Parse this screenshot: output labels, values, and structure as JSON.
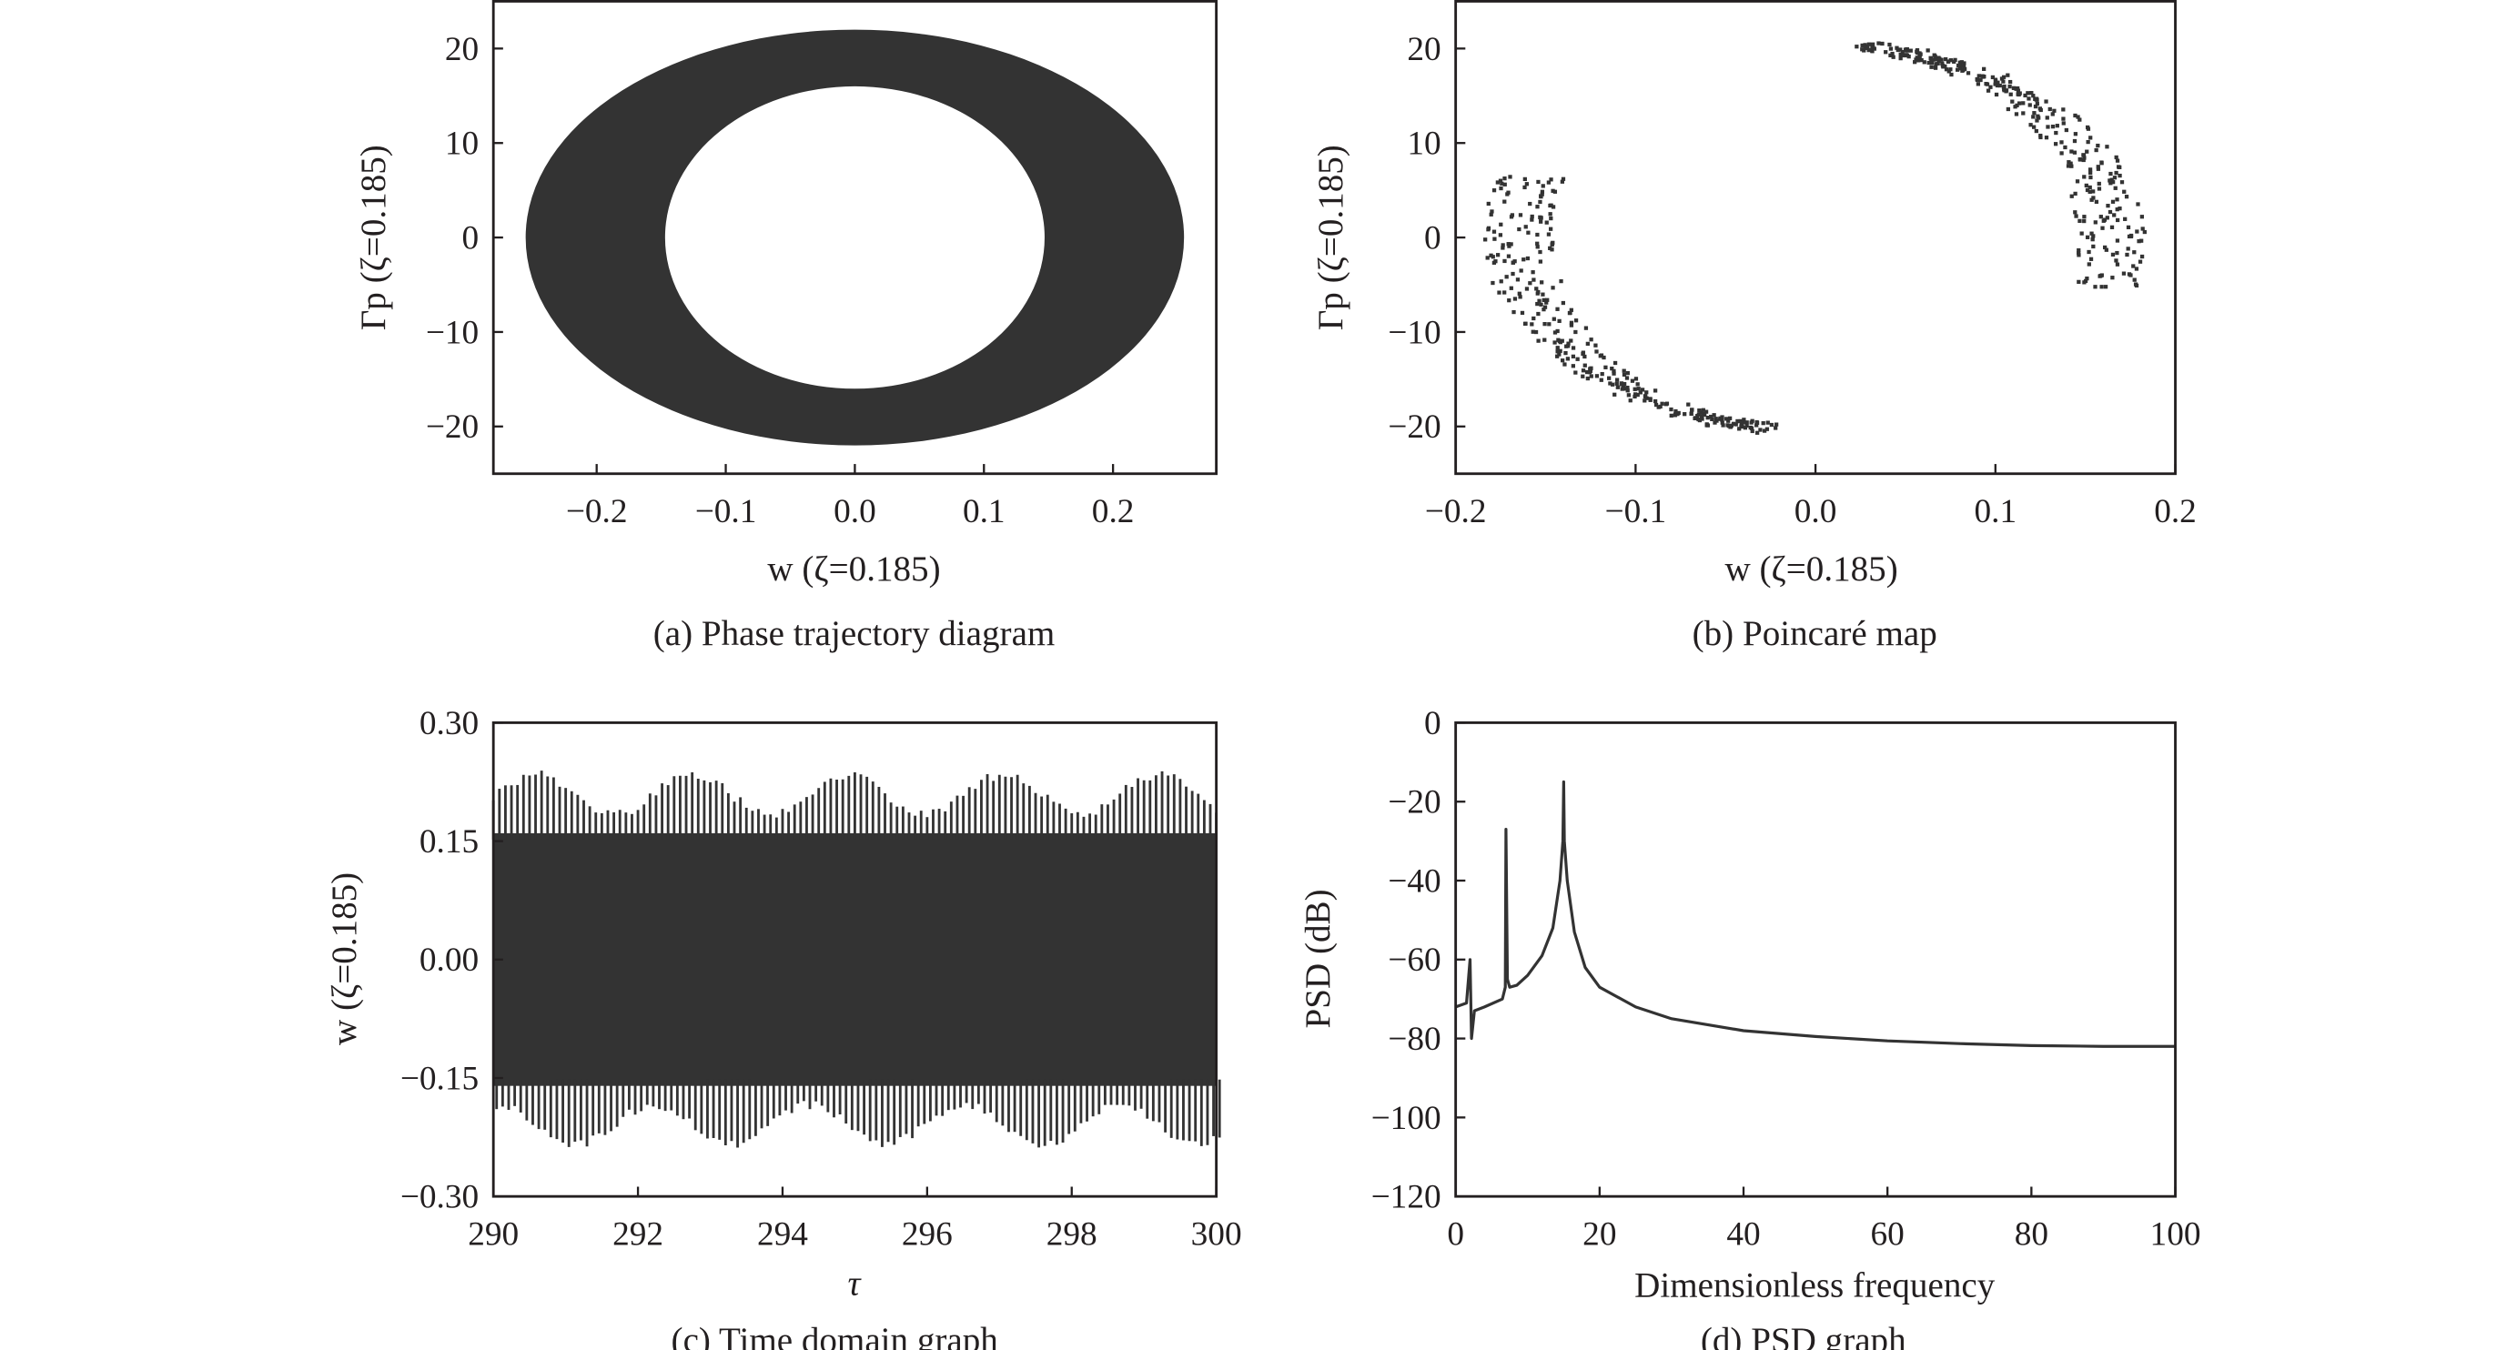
{
  "chart_data": [
    {
      "id": "a",
      "type": "area",
      "caption": "(a) Phase trajectory diagram",
      "xlabel": "w (ζ=0.185)",
      "ylabel": "Γp (ζ=0.185)",
      "xlim": [
        -0.28,
        0.28
      ],
      "ylim": [
        -25,
        25
      ],
      "xticks": [
        "−0.2",
        "−0.1",
        "0.0",
        "0.1",
        "0.2"
      ],
      "xtick_values": [
        -0.2,
        -0.1,
        0.0,
        0.1,
        0.2
      ],
      "yticks": [
        "20",
        "10",
        "0",
        "−10",
        "−20"
      ],
      "ytick_values": [
        20,
        10,
        0,
        -10,
        -20
      ],
      "annulus": {
        "outer_w": 0.255,
        "outer_gamma": 22,
        "inner_w": 0.147,
        "inner_gamma": 16
      },
      "color": "#333333"
    },
    {
      "id": "b",
      "type": "scatter",
      "caption": "(b) Poincaré map",
      "xlabel": "w (ζ=0.185)",
      "ylabel": "Γp (ζ=0.185)",
      "xlim": [
        -0.2,
        0.2
      ],
      "ylim": [
        -25,
        25
      ],
      "xticks": [
        "−0.2",
        "−0.1",
        "0.0",
        "0.1",
        "0.2"
      ],
      "xtick_values": [
        -0.2,
        -0.1,
        0.0,
        0.1,
        0.2
      ],
      "yticks": [
        "20",
        "10",
        "0",
        "−10",
        "−20"
      ],
      "ytick_values": [
        20,
        10,
        0,
        -10,
        -20
      ],
      "clusters": [
        {
          "w_amp": 0.165,
          "gamma_amp": 20.5,
          "theta_deg": [
            162,
            262
          ],
          "count": 330,
          "spread": 0.022
        },
        {
          "w_amp": 0.165,
          "gamma_amp": 20.5,
          "theta_deg": [
            -15,
            82
          ],
          "count": 330,
          "spread": 0.022
        }
      ],
      "color": "#333333"
    },
    {
      "id": "c",
      "type": "line",
      "caption": "(c) Time domain graph",
      "xlabel": "τ",
      "ylabel": "w (ζ=0.185)",
      "xlim": [
        290,
        300
      ],
      "ylim": [
        -0.3,
        0.3
      ],
      "xticks": [
        "290",
        "292",
        "294",
        "296",
        "298",
        "300"
      ],
      "xtick_values": [
        290,
        292,
        294,
        296,
        298,
        300
      ],
      "yticks": [
        "0.30",
        "0.15",
        "0.00",
        "−0.15",
        "−0.30"
      ],
      "ytick_values": [
        0.3,
        0.15,
        0.0,
        -0.15,
        -0.3
      ],
      "signal": {
        "peak_max": 0.24,
        "peak_min": 0.19,
        "core_band": 0.16,
        "modulation_period": 2.15,
        "spikes_per_unit": 6
      },
      "color": "#333333"
    },
    {
      "id": "d",
      "type": "line",
      "caption": "(d) PSD graph",
      "xlabel": "Dimensionless frequency",
      "ylabel": "PSD (dB)",
      "xlim": [
        0,
        100
      ],
      "ylim": [
        -120,
        0
      ],
      "xticks": [
        "0",
        "20",
        "40",
        "60",
        "80",
        "100"
      ],
      "xtick_values": [
        0,
        20,
        40,
        60,
        80,
        100
      ],
      "yticks": [
        "0",
        "−20",
        "−40",
        "−60",
        "−80",
        "−100",
        "−120"
      ],
      "ytick_values": [
        0,
        -20,
        -40,
        -60,
        -80,
        -100,
        -120
      ],
      "x": [
        0,
        1.5,
        2.0,
        2.2,
        2.6,
        4,
        6.5,
        6.9,
        7.0,
        7.2,
        7.5,
        8.5,
        10,
        12,
        13.5,
        14.5,
        14.9,
        15.0,
        15.1,
        15.5,
        16.5,
        18,
        20,
        25,
        30,
        40,
        50,
        60,
        70,
        80,
        90,
        100
      ],
      "y": [
        -72,
        -71,
        -60,
        -80,
        -73,
        -72,
        -70,
        -67,
        -27,
        -65,
        -67,
        -66.5,
        -64,
        -59,
        -52,
        -40,
        -30,
        -15,
        -30,
        -40,
        -53,
        -62,
        -67,
        -72,
        -75,
        -78,
        -79.5,
        -80.6,
        -81.3,
        -81.8,
        -82,
        -82
      ],
      "color": "#333333"
    }
  ]
}
